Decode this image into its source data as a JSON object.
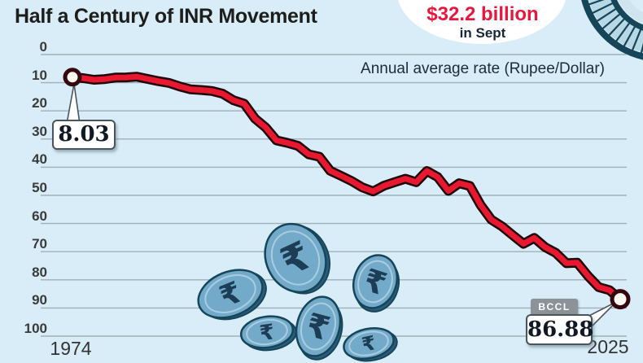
{
  "title": "Half a Century of INR Movement",
  "highlight": {
    "amount": "$32.2 billion",
    "period": "in Sept"
  },
  "note": "Annual average rate (Rupee/Dollar)",
  "source_badge": "BCCL",
  "callouts": {
    "start": "8.03",
    "end": "86.88"
  },
  "icons": {
    "rupee_coin": "₹"
  },
  "colors": {
    "background": "#d8edf8",
    "gridline": "#9fb0b6",
    "line": "#e7182f",
    "line_outline": "#20050b",
    "marker_ring": "#36060f",
    "marker_fill": "#fdf8f1",
    "accent_red": "#e9173e",
    "navy": "#15273c",
    "coin_face": "#74aac9",
    "coin_edge_dark": "#16455a",
    "coin_side": "#2a5d7c",
    "coin_ring": "#a9cde0",
    "coin_glyph": "#1c3d55"
  },
  "chart_data": {
    "type": "line",
    "title": "Half a Century of INR Movement",
    "series_label": "Annual average rate (Rupee/Dollar)",
    "x": [
      1974,
      1975,
      1976,
      1977,
      1978,
      1979,
      1980,
      1981,
      1982,
      1983,
      1984,
      1985,
      1986,
      1987,
      1988,
      1989,
      1990,
      1991,
      1992,
      1993,
      1994,
      1995,
      1996,
      1997,
      1998,
      1999,
      2000,
      2001,
      2002,
      2003,
      2004,
      2005,
      2006,
      2007,
      2008,
      2009,
      2010,
      2011,
      2012,
      2013,
      2014,
      2015,
      2016,
      2017,
      2018,
      2019,
      2020,
      2021,
      2022,
      2023,
      2024,
      2025
    ],
    "values": [
      8.03,
      8.38,
      8.96,
      8.74,
      8.19,
      8.13,
      7.86,
      8.66,
      9.46,
      10.1,
      11.36,
      12.37,
      12.61,
      12.96,
      13.92,
      16.23,
      17.5,
      22.74,
      25.92,
      30.49,
      31.37,
      32.43,
      35.43,
      36.31,
      41.26,
      43.06,
      44.94,
      47.19,
      48.61,
      46.58,
      45.32,
      44.1,
      45.31,
      41.35,
      43.51,
      48.41,
      45.73,
      46.67,
      53.44,
      58.6,
      61.03,
      64.15,
      67.2,
      65.12,
      68.39,
      70.42,
      74.1,
      73.92,
      78.6,
      82.6,
      83.67,
      86.88
    ],
    "y_ticks": [
      0,
      10,
      20,
      30,
      40,
      50,
      60,
      70,
      80,
      90,
      100
    ],
    "ylim": [
      0,
      100
    ],
    "y_axis_inverted": true,
    "x_tick_labels": [
      "1974",
      "2025"
    ],
    "point_labels": {
      "first": "8.03",
      "last": "86.88"
    },
    "grid": "horizontal",
    "legend_position": "none"
  }
}
